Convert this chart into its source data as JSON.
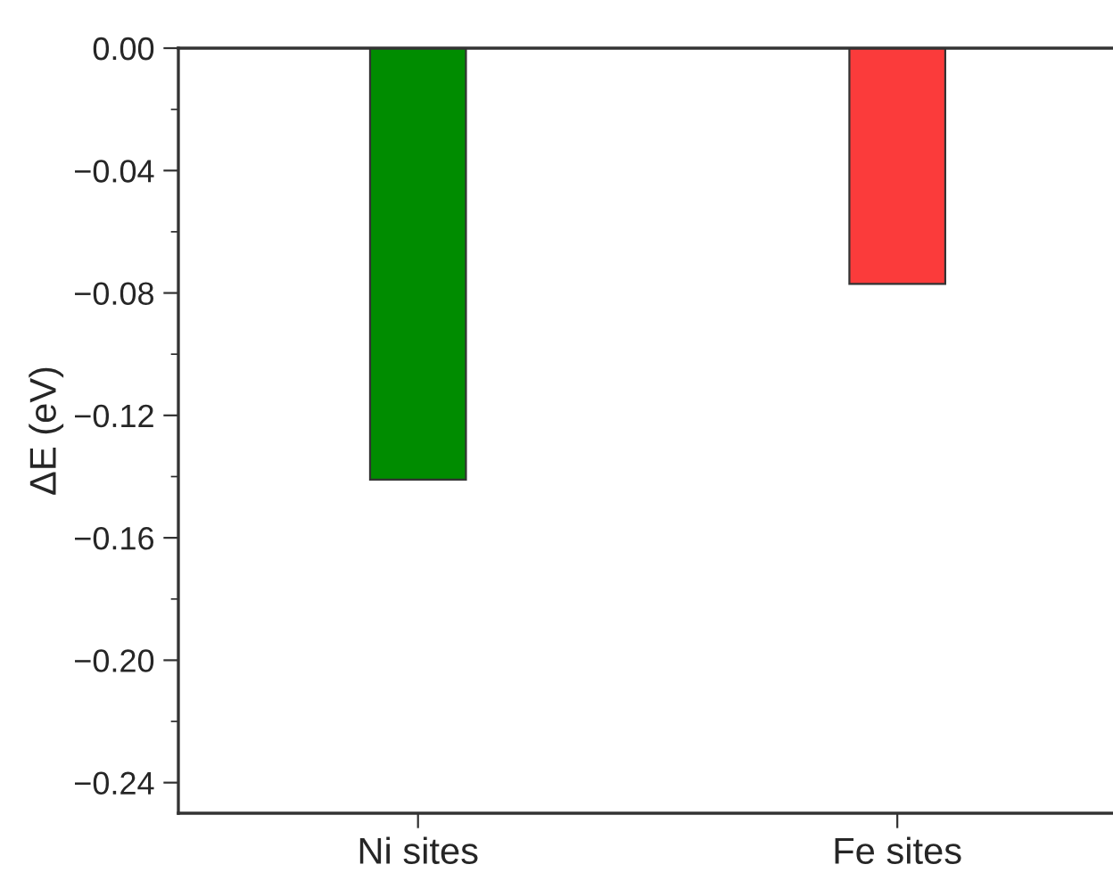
{
  "chart_data": {
    "type": "bar",
    "ylabel": "ΔE (eV)",
    "categories": [
      "Ni sites",
      "Fe sites"
    ],
    "values": [
      -0.141,
      -0.077
    ],
    "colors": [
      "#008c00",
      "#fb3b3b"
    ],
    "ylim": [
      -0.25,
      0.0
    ],
    "yticks": [
      {
        "value": 0.0,
        "label": "0.00"
      },
      {
        "value": -0.04,
        "label": "−0.04"
      },
      {
        "value": -0.08,
        "label": "−0.08"
      },
      {
        "value": -0.12,
        "label": "−0.12"
      },
      {
        "value": -0.16,
        "label": "−0.16"
      },
      {
        "value": -0.2,
        "label": "−0.20"
      },
      {
        "value": -0.24,
        "label": "−0.24"
      }
    ],
    "grid": false,
    "legend": false
  }
}
